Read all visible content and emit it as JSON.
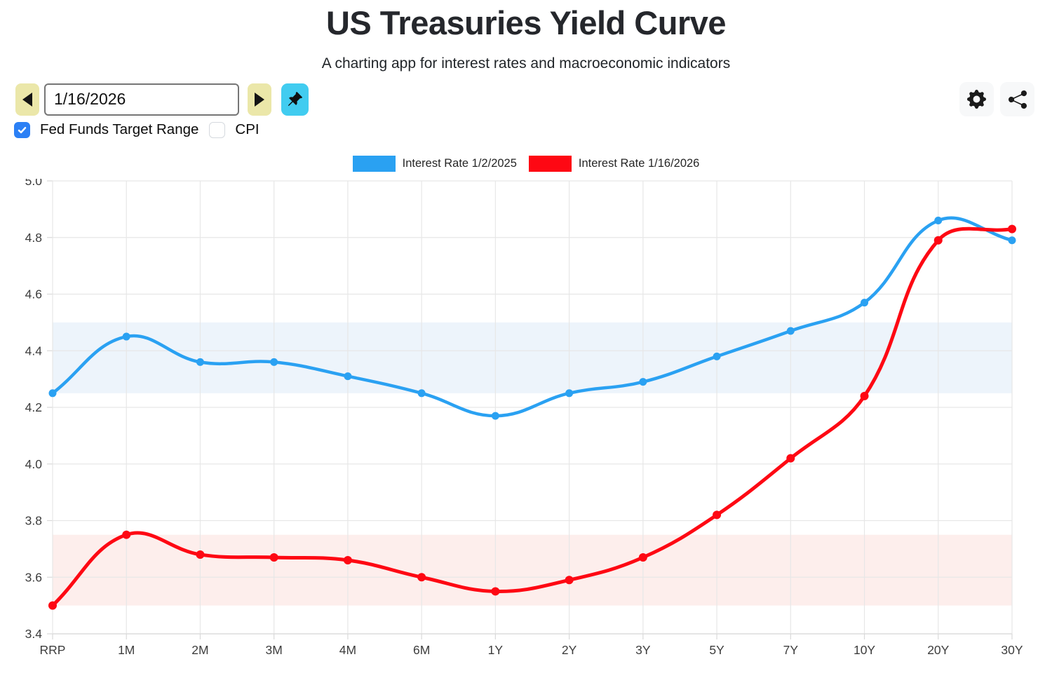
{
  "header": {
    "title": "US Treasuries Yield Curve",
    "subtitle": "A charting app for interest rates and macroeconomic indicators"
  },
  "toolbar": {
    "date_value": "1/16/2026",
    "icons": {
      "prev": "left-arrow",
      "next": "right-arrow",
      "pin": "pushpin",
      "settings": "gear",
      "share": "share-nodes"
    },
    "colors": {
      "nav_button_bg": "#ebe7a9",
      "pin_button_bg": "#41ccf0",
      "icon_button_bg": "#f7f8f9"
    }
  },
  "filters": {
    "accent_color": "#2b80f5",
    "fed_funds": {
      "label": "Fed Funds Target Range",
      "checked": true
    },
    "cpi": {
      "label": "CPI",
      "checked": false
    }
  },
  "legend": [
    {
      "label": "Interest Rate 1/2/2025",
      "color": "#2aa1f2"
    },
    {
      "label": "Interest Rate 1/16/2026",
      "color": "#fe0813"
    }
  ],
  "chart_data": {
    "type": "line",
    "categories": [
      "RRP",
      "1M",
      "2M",
      "3M",
      "4M",
      "6M",
      "1Y",
      "2Y",
      "3Y",
      "5Y",
      "7Y",
      "10Y",
      "20Y",
      "30Y"
    ],
    "series": [
      {
        "name": "Interest Rate 1/2/2025",
        "color": "#2aa1f2",
        "line_width": 4.5,
        "point_radius": 5.5,
        "values": [
          4.25,
          4.45,
          4.36,
          4.36,
          4.31,
          4.25,
          4.17,
          4.25,
          4.29,
          4.38,
          4.47,
          4.57,
          4.86,
          4.79
        ]
      },
      {
        "name": "Interest Rate 1/16/2026",
        "color": "#fe0813",
        "line_width": 5,
        "point_radius": 6,
        "values": [
          3.5,
          3.75,
          3.68,
          3.67,
          3.66,
          3.6,
          3.55,
          3.59,
          3.67,
          3.82,
          4.02,
          4.24,
          4.79,
          4.83
        ]
      }
    ],
    "bands": [
      {
        "name": "Fed Funds Target Range 1/2/2025",
        "from": 4.25,
        "to": 4.5,
        "color": "#edf4fb"
      },
      {
        "name": "Fed Funds Target Range 1/16/2026",
        "from": 3.5,
        "to": 3.75,
        "color": "#fdeeec"
      }
    ],
    "ylim": [
      3.4,
      5.0
    ],
    "yticks": [
      3.4,
      3.6,
      3.8,
      4.0,
      4.2,
      4.4,
      4.6,
      4.8,
      5.0
    ],
    "grid": true,
    "legend_position": "top",
    "curve_tension": 0.4,
    "xlabel": "",
    "ylabel": ""
  }
}
